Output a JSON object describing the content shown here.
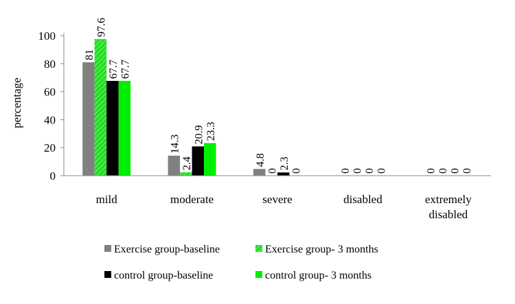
{
  "chart_data": {
    "type": "bar",
    "title": "",
    "xlabel": "",
    "ylabel": "percentage",
    "ylim": [
      0,
      100
    ],
    "yticks": [
      0,
      20,
      40,
      60,
      80,
      100
    ],
    "grid": false,
    "legend_position": "bottom",
    "categories": [
      [
        "mild"
      ],
      [
        "moderate"
      ],
      [
        "severe"
      ],
      [
        "disabled"
      ],
      [
        "extremely",
        "disabled"
      ]
    ],
    "series": [
      {
        "name": "Exercise group-baseline",
        "values": [
          81,
          14.3,
          4.8,
          0,
          0
        ],
        "labels": [
          "81",
          "14.3",
          "4.8",
          "0",
          "0"
        ],
        "color": "#808080",
        "pattern": "solid"
      },
      {
        "name": "Exercise group- 3 months",
        "values": [
          97.6,
          2.4,
          0,
          0,
          0
        ],
        "labels": [
          "97.6",
          "2.4",
          "0",
          "0",
          "0"
        ],
        "color": "#22dd22",
        "pattern": "hatched"
      },
      {
        "name": "control group-baseline",
        "values": [
          67.7,
          20.9,
          2.3,
          0,
          0
        ],
        "labels": [
          "67.7",
          "20.9",
          "2.3",
          "0",
          "0"
        ],
        "color": "#000000",
        "pattern": "solid"
      },
      {
        "name": "control group- 3 months",
        "values": [
          67.7,
          23.3,
          0,
          0,
          0
        ],
        "labels": [
          "67.7",
          "23.3",
          "0",
          "0",
          "0"
        ],
        "color": "#00ee00",
        "pattern": "solid"
      }
    ]
  }
}
